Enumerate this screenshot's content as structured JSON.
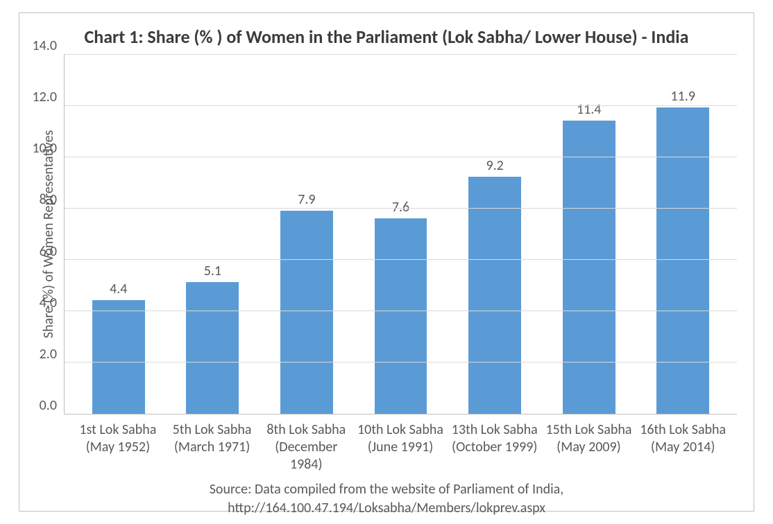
{
  "chart": {
    "type": "bar",
    "title": "Chart 1: Share (% ) of Women in the Parliament (Lok Sabha/ Lower House) - India",
    "title_fontsize": 26,
    "title_color": "#3b3b3b",
    "ylabel": "Share (%) of Women Representatives",
    "ylabel_fontsize": 20,
    "axis_text_color": "#595959",
    "tick_fontsize": 20,
    "value_label_fontsize": 20,
    "xlabel_fontsize": 20,
    "categories": [
      "1st Lok Sabha (May 1952)",
      "5th Lok Sabha (March 1971)",
      "8th Lok Sabha (December 1984)",
      "10th Lok Sabha (June 1991)",
      "13th Lok Sabha (October 1999)",
      "15th Lok Sabha (May 2009)",
      "16th Lok Sabha (May 2014)"
    ],
    "values": [
      4.4,
      5.1,
      7.9,
      7.6,
      9.2,
      11.4,
      11.9
    ],
    "value_labels": [
      "4.4",
      "5.1",
      "7.9",
      "7.6",
      "9.2",
      "11.4",
      "11.9"
    ],
    "bar_color": "#5b9bd5",
    "bar_width_pct": 56,
    "ylim": [
      0.0,
      14.0
    ],
    "ytick_step": 2.0,
    "ytick_labels": [
      "14.0",
      "12.0",
      "10.0",
      "8.0",
      "6.0",
      "4.0",
      "2.0",
      "0.0"
    ],
    "background_color": "#ffffff",
    "grid_color": "#d9d9d9",
    "border_color": "#bfbfbf",
    "source_line1": "Source: Data compiled from the website of Parliament of India,",
    "source_line2": "http://164.100.47.194/Loksabha/Members/lokprev.aspx",
    "source_fontsize": 20
  }
}
